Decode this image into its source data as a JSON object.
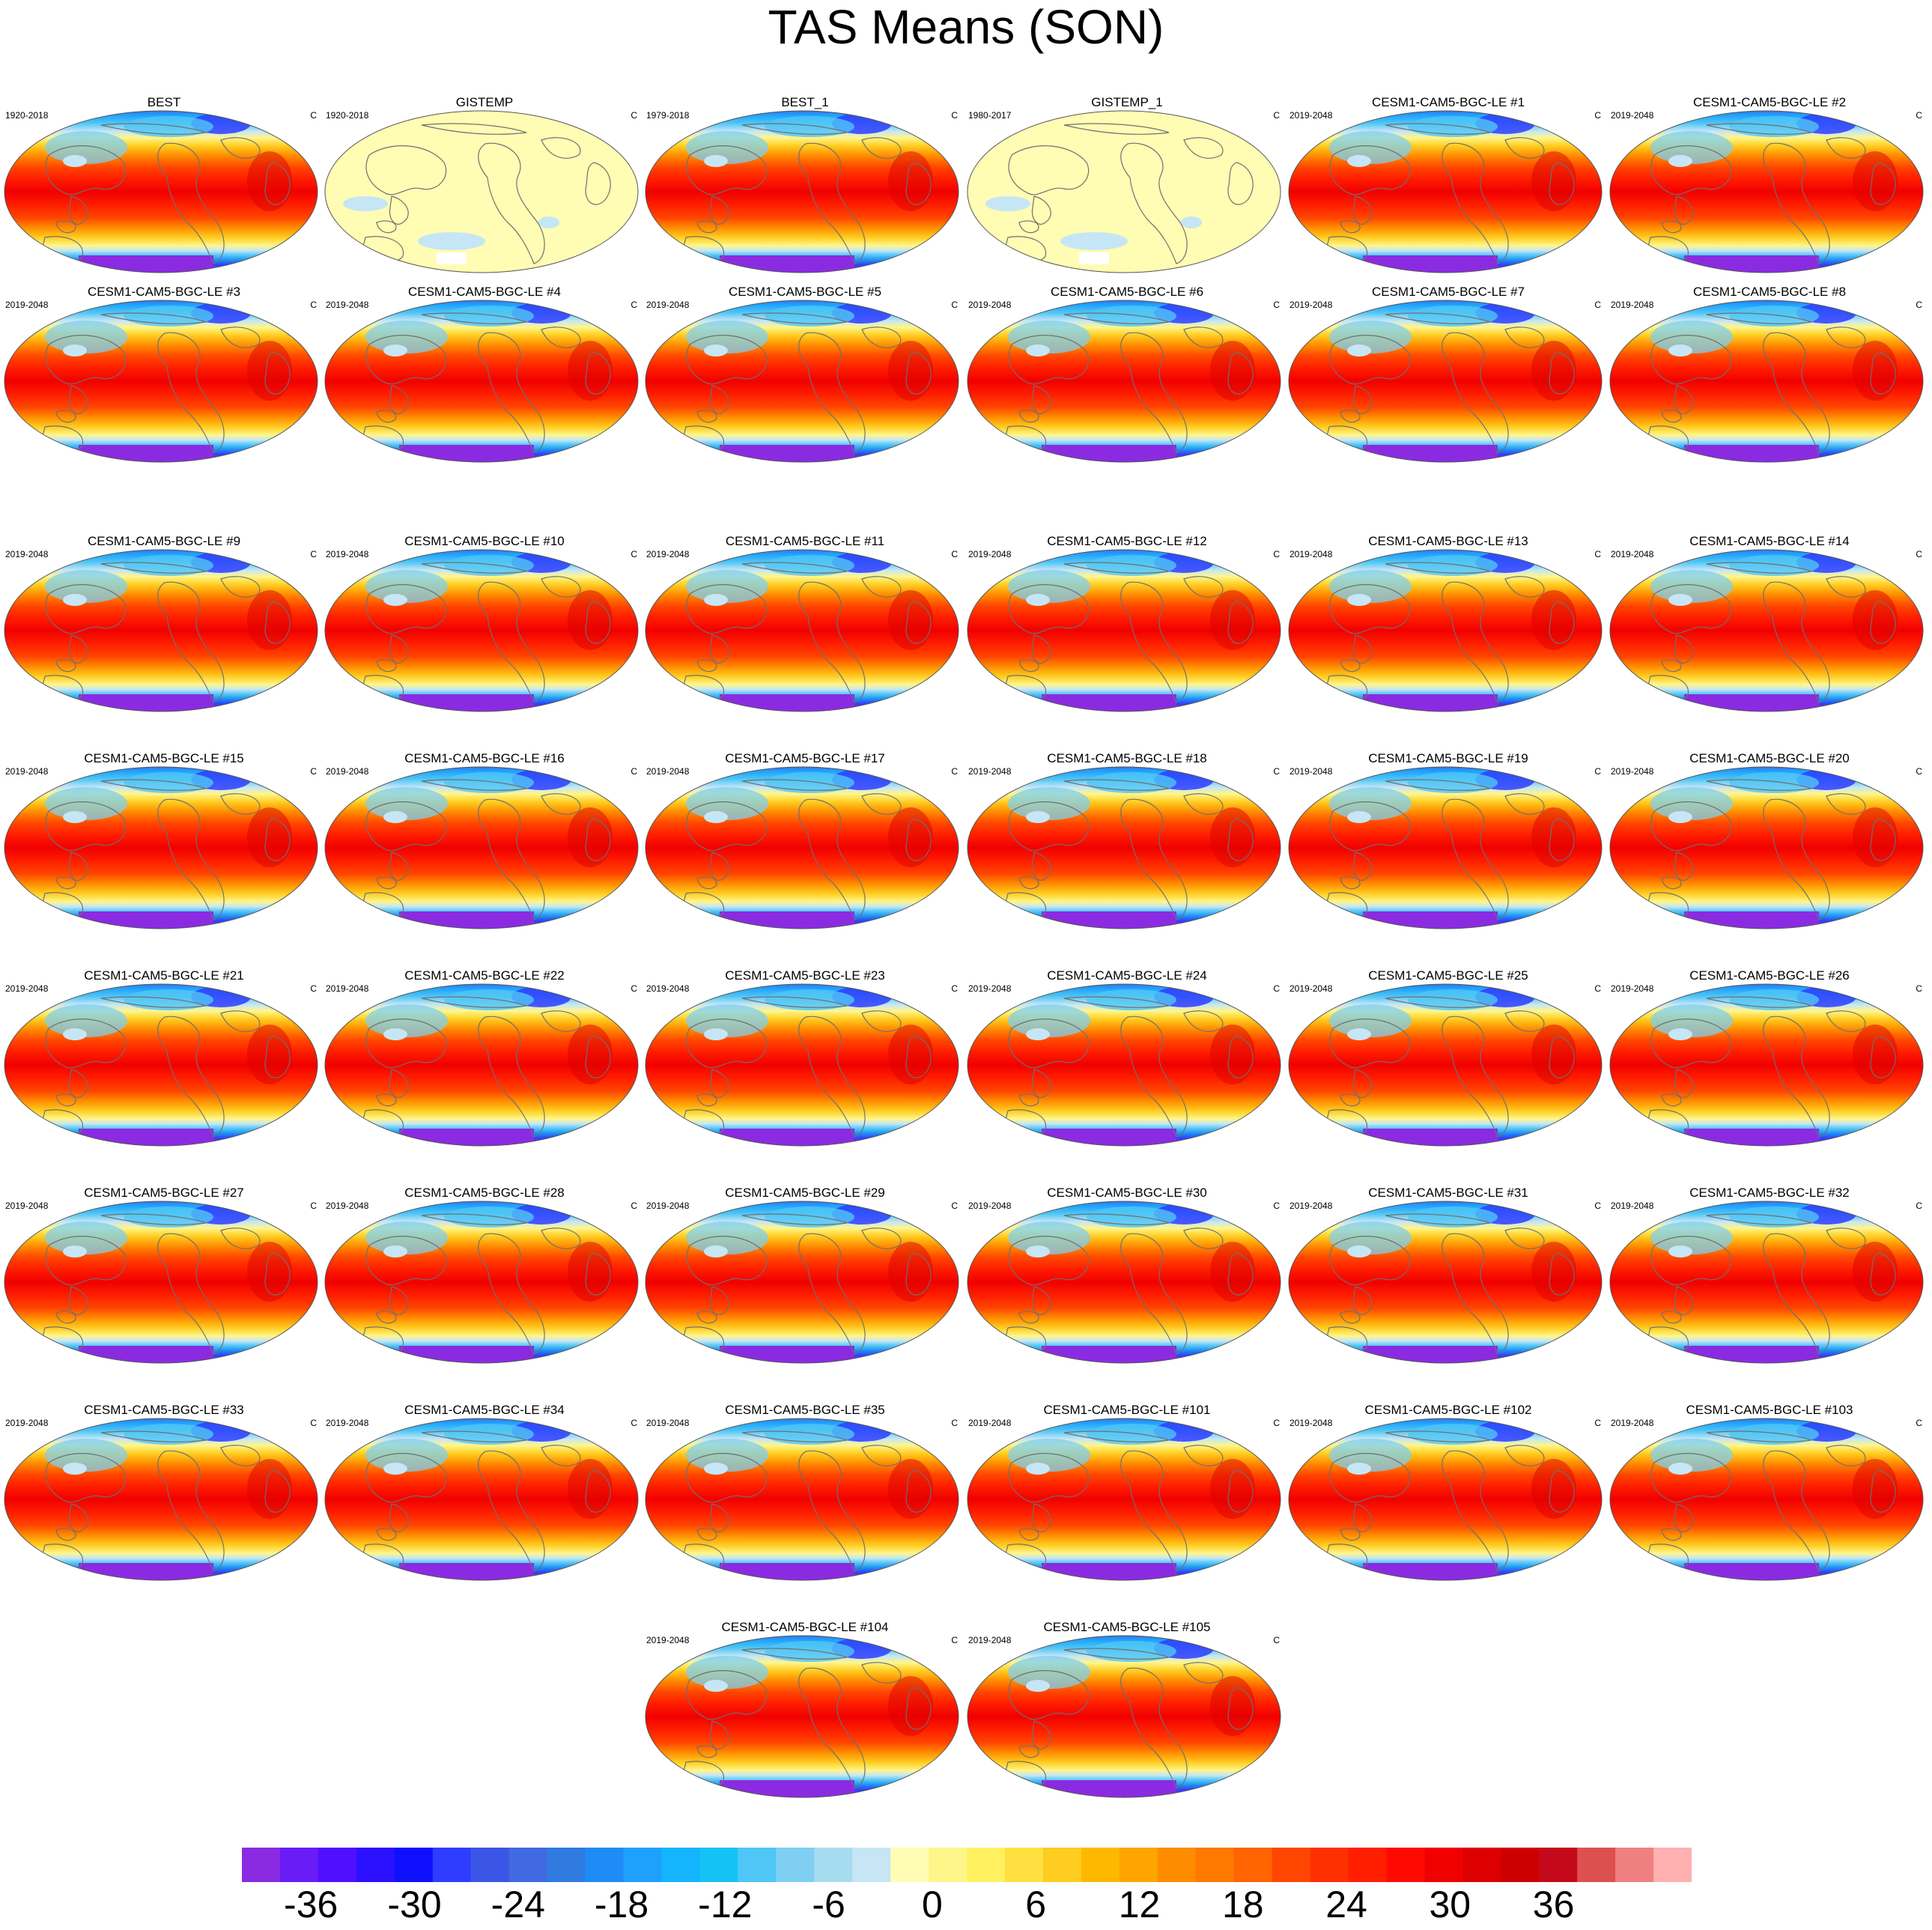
{
  "title": "TAS Means (SON)",
  "panel_unit": "C",
  "panels": [
    {
      "title": "BEST",
      "period": "1920-2018",
      "type": "model"
    },
    {
      "title": "GISTEMP",
      "period": "1920-2018",
      "type": "anomaly"
    },
    {
      "title": "BEST_1",
      "period": "1979-2018",
      "type": "model"
    },
    {
      "title": "GISTEMP_1",
      "period": "1980-2017",
      "type": "anomaly"
    },
    {
      "title": "CESM1-CAM5-BGC-LE #1",
      "period": "2019-2048",
      "type": "model"
    },
    {
      "title": "CESM1-CAM5-BGC-LE #2",
      "period": "2019-2048",
      "type": "model"
    },
    {
      "title": "CESM1-CAM5-BGC-LE #3",
      "period": "2019-2048",
      "type": "model"
    },
    {
      "title": "CESM1-CAM5-BGC-LE #4",
      "period": "2019-2048",
      "type": "model"
    },
    {
      "title": "CESM1-CAM5-BGC-LE #5",
      "period": "2019-2048",
      "type": "model"
    },
    {
      "title": "CESM1-CAM5-BGC-LE #6",
      "period": "2019-2048",
      "type": "model"
    },
    {
      "title": "CESM1-CAM5-BGC-LE #7",
      "period": "2019-2048",
      "type": "model"
    },
    {
      "title": "CESM1-CAM5-BGC-LE #8",
      "period": "2019-2048",
      "type": "model"
    },
    {
      "title": "CESM1-CAM5-BGC-LE #9",
      "period": "2019-2048",
      "type": "model"
    },
    {
      "title": "CESM1-CAM5-BGC-LE #10",
      "period": "2019-2048",
      "type": "model"
    },
    {
      "title": "CESM1-CAM5-BGC-LE #11",
      "period": "2019-2048",
      "type": "model"
    },
    {
      "title": "CESM1-CAM5-BGC-LE #12",
      "period": "2019-2048",
      "type": "model"
    },
    {
      "title": "CESM1-CAM5-BGC-LE #13",
      "period": "2019-2048",
      "type": "model"
    },
    {
      "title": "CESM1-CAM5-BGC-LE #14",
      "period": "2019-2048",
      "type": "model"
    },
    {
      "title": "CESM1-CAM5-BGC-LE #15",
      "period": "2019-2048",
      "type": "model"
    },
    {
      "title": "CESM1-CAM5-BGC-LE #16",
      "period": "2019-2048",
      "type": "model"
    },
    {
      "title": "CESM1-CAM5-BGC-LE #17",
      "period": "2019-2048",
      "type": "model"
    },
    {
      "title": "CESM1-CAM5-BGC-LE #18",
      "period": "2019-2048",
      "type": "model"
    },
    {
      "title": "CESM1-CAM5-BGC-LE #19",
      "period": "2019-2048",
      "type": "model"
    },
    {
      "title": "CESM1-CAM5-BGC-LE #20",
      "period": "2019-2048",
      "type": "model"
    },
    {
      "title": "CESM1-CAM5-BGC-LE #21",
      "period": "2019-2048",
      "type": "model"
    },
    {
      "title": "CESM1-CAM5-BGC-LE #22",
      "period": "2019-2048",
      "type": "model"
    },
    {
      "title": "CESM1-CAM5-BGC-LE #23",
      "period": "2019-2048",
      "type": "model"
    },
    {
      "title": "CESM1-CAM5-BGC-LE #24",
      "period": "2019-2048",
      "type": "model"
    },
    {
      "title": "CESM1-CAM5-BGC-LE #25",
      "period": "2019-2048",
      "type": "model"
    },
    {
      "title": "CESM1-CAM5-BGC-LE #26",
      "period": "2019-2048",
      "type": "model"
    },
    {
      "title": "CESM1-CAM5-BGC-LE #27",
      "period": "2019-2048",
      "type": "model"
    },
    {
      "title": "CESM1-CAM5-BGC-LE #28",
      "period": "2019-2048",
      "type": "model"
    },
    {
      "title": "CESM1-CAM5-BGC-LE #29",
      "period": "2019-2048",
      "type": "model"
    },
    {
      "title": "CESM1-CAM5-BGC-LE #30",
      "period": "2019-2048",
      "type": "model"
    },
    {
      "title": "CESM1-CAM5-BGC-LE #31",
      "period": "2019-2048",
      "type": "model"
    },
    {
      "title": "CESM1-CAM5-BGC-LE #32",
      "period": "2019-2048",
      "type": "model"
    },
    {
      "title": "CESM1-CAM5-BGC-LE #33",
      "period": "2019-2048",
      "type": "model"
    },
    {
      "title": "CESM1-CAM5-BGC-LE #34",
      "period": "2019-2048",
      "type": "model"
    },
    {
      "title": "CESM1-CAM5-BGC-LE #35",
      "period": "2019-2048",
      "type": "model"
    },
    {
      "title": "CESM1-CAM5-BGC-LE #101",
      "period": "2019-2048",
      "type": "model"
    },
    {
      "title": "CESM1-CAM5-BGC-LE #102",
      "period": "2019-2048",
      "type": "model"
    },
    {
      "title": "CESM1-CAM5-BGC-LE #103",
      "period": "2019-2048",
      "type": "model"
    },
    {
      "title": "CESM1-CAM5-BGC-LE #104",
      "period": "2019-2048",
      "type": "model"
    },
    {
      "title": "CESM1-CAM5-BGC-LE #105",
      "period": "2019-2048",
      "type": "model"
    }
  ],
  "colorbar": {
    "labels": [
      "-36",
      "-30",
      "-24",
      "-18",
      "-12",
      "-6",
      "0",
      "6",
      "12",
      "18",
      "24",
      "30",
      "36"
    ],
    "label_values": [
      -36,
      -30,
      -24,
      -18,
      -12,
      -6,
      0,
      6,
      12,
      18,
      24,
      30,
      36
    ],
    "min": -40,
    "max": 44,
    "step": 2,
    "colors": [
      "#8a2be2",
      "#6a1cf6",
      "#5010ff",
      "#2a10ff",
      "#0f0fff",
      "#2e3dff",
      "#3b56e6",
      "#4169e1",
      "#2f7be0",
      "#1e8cf4",
      "#1ea0ff",
      "#14b4ff",
      "#15c2f5",
      "#4fc6f5",
      "#7ecff2",
      "#a6dcf0",
      "#c6e6f6",
      "#fffcb4",
      "#fff68a",
      "#fff060",
      "#ffe040",
      "#ffcc20",
      "#ffb800",
      "#ffa500",
      "#ff8c00",
      "#ff7800",
      "#ff6400",
      "#ff4600",
      "#ff3000",
      "#ff1e00",
      "#ff0a00",
      "#f00000",
      "#dd0000",
      "#cc0000",
      "#c40a1a",
      "#dc5050",
      "#f08080",
      "#ffb0b0"
    ]
  },
  "chart_data": {
    "type": "heatmap",
    "title": "TAS Means (SON)",
    "units": "C",
    "panel_count": 44,
    "colorbar_range": [
      -40,
      44
    ],
    "colorbar_interval": 2,
    "colorbar_tick_labels": [
      -36,
      -30,
      -24,
      -18,
      -12,
      -6,
      0,
      6,
      12,
      18,
      24,
      30,
      36
    ],
    "map_projection": "Robinson (Pacific-centered)",
    "panel_titles": [
      "BEST",
      "GISTEMP",
      "BEST_1",
      "GISTEMP_1",
      "CESM1-CAM5-BGC-LE #1",
      "CESM1-CAM5-BGC-LE #2",
      "CESM1-CAM5-BGC-LE #3",
      "CESM1-CAM5-BGC-LE #4",
      "CESM1-CAM5-BGC-LE #5",
      "CESM1-CAM5-BGC-LE #6",
      "CESM1-CAM5-BGC-LE #7",
      "CESM1-CAM5-BGC-LE #8",
      "CESM1-CAM5-BGC-LE #9",
      "CESM1-CAM5-BGC-LE #10",
      "CESM1-CAM5-BGC-LE #11",
      "CESM1-CAM5-BGC-LE #12",
      "CESM1-CAM5-BGC-LE #13",
      "CESM1-CAM5-BGC-LE #14",
      "CESM1-CAM5-BGC-LE #15",
      "CESM1-CAM5-BGC-LE #16",
      "CESM1-CAM5-BGC-LE #17",
      "CESM1-CAM5-BGC-LE #18",
      "CESM1-CAM5-BGC-LE #19",
      "CESM1-CAM5-BGC-LE #20",
      "CESM1-CAM5-BGC-LE #21",
      "CESM1-CAM5-BGC-LE #22",
      "CESM1-CAM5-BGC-LE #23",
      "CESM1-CAM5-BGC-LE #24",
      "CESM1-CAM5-BGC-LE #25",
      "CESM1-CAM5-BGC-LE #26",
      "CESM1-CAM5-BGC-LE #27",
      "CESM1-CAM5-BGC-LE #28",
      "CESM1-CAM5-BGC-LE #29",
      "CESM1-CAM5-BGC-LE #30",
      "CESM1-CAM5-BGC-LE #31",
      "CESM1-CAM5-BGC-LE #32",
      "CESM1-CAM5-BGC-LE #33",
      "CESM1-CAM5-BGC-LE #34",
      "CESM1-CAM5-BGC-LE #35",
      "CESM1-CAM5-BGC-LE #101",
      "CESM1-CAM5-BGC-LE #102",
      "CESM1-CAM5-BGC-LE #103",
      "CESM1-CAM5-BGC-LE #104",
      "CESM1-CAM5-BGC-LE #105"
    ]
  }
}
